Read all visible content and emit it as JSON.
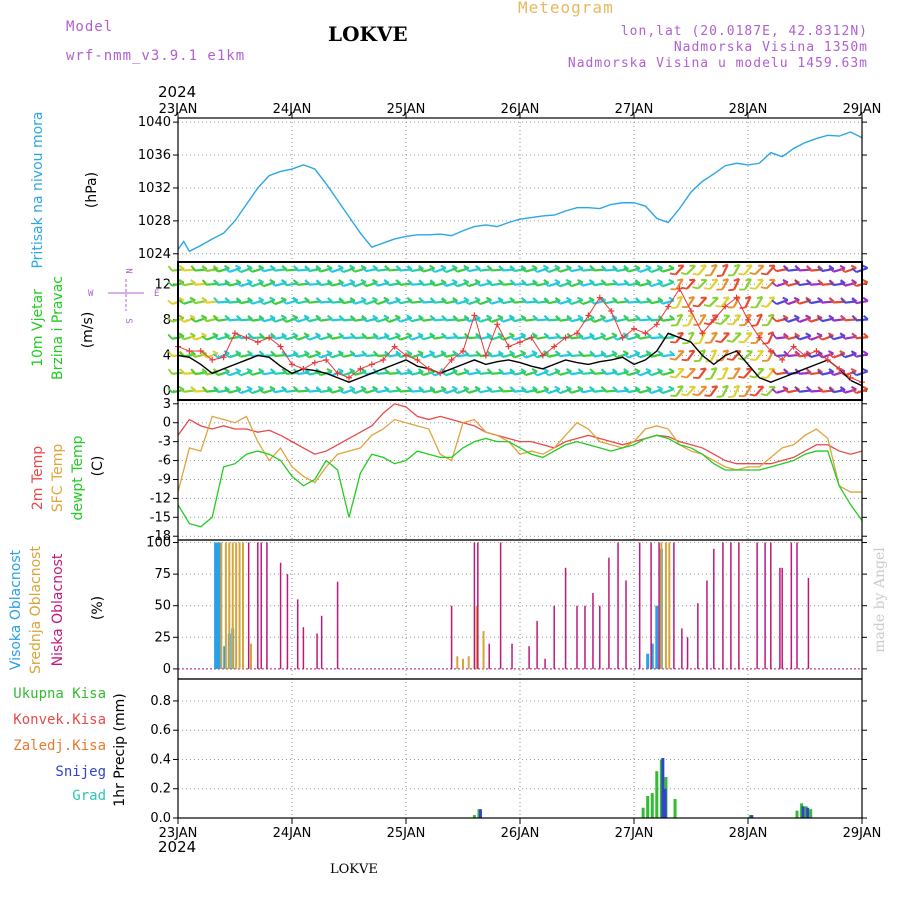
{
  "header": {
    "model_label": "Model",
    "model_name": "wrf-nmm_v3.9.1  e1km",
    "station": "LOKVE",
    "meteogram": "Meteogram",
    "coords": "lon,lat (20.0187E, 42.8312N)",
    "altitude": "Nadmorska Visina 1350m",
    "model_altitude": "Nadmorska Visina u modelu 1459.63m",
    "year_top": "2024",
    "year_bottom": "2024",
    "footer_station": "LOKVE",
    "credit": "made by Angel"
  },
  "colors": {
    "pressure": "#2aa7e6",
    "wind_speed": "#000000",
    "wind_gust": "#e83a3a",
    "temp_2m": "#e84a4a",
    "temp_sfc": "#e0a43c",
    "dewpoint": "#22cc22",
    "cloud_high": "#2aa0e6",
    "cloud_mid": "#d4a53a",
    "cloud_low": "#c0187a",
    "precip_total": "#33bb33",
    "precip_snow": "#3344cc",
    "label_purple": "#b060d0"
  },
  "chart_data": [
    {
      "panel": "pressure",
      "type": "line",
      "ylabel_name": "Pritisak na nivou mora",
      "ylabel_unit": "(hPa)",
      "ylim": [
        1023,
        1040.5
      ],
      "yticks": [
        1024,
        1028,
        1032,
        1036,
        1040
      ],
      "x": [
        0,
        0.05,
        0.1,
        0.2,
        0.3,
        0.4,
        0.5,
        0.6,
        0.7,
        0.8,
        0.9,
        1.0,
        1.1,
        1.2,
        1.3,
        1.4,
        1.5,
        1.6,
        1.7,
        1.8,
        1.9,
        2.0,
        2.1,
        2.2,
        2.3,
        2.4,
        2.5,
        2.6,
        2.7,
        2.8,
        2.9,
        3.0,
        3.1,
        3.2,
        3.3,
        3.4,
        3.5,
        3.6,
        3.7,
        3.8,
        3.9,
        4.0,
        4.1,
        4.2,
        4.3,
        4.4,
        4.5,
        4.6,
        4.7,
        4.8,
        4.9,
        5.0,
        5.1,
        5.2,
        5.3,
        5.4,
        5.5,
        5.6,
        5.7,
        5.8,
        5.9,
        6.0
      ],
      "series": [
        {
          "values": [
            1024.5,
            1025.5,
            1024.3,
            1025.0,
            1025.8,
            1026.5,
            1028.0,
            1030.0,
            1032.0,
            1033.5,
            1034.0,
            1034.3,
            1034.8,
            1034.3,
            1032.5,
            1030.5,
            1028.5,
            1026.5,
            1024.8,
            1025.3,
            1025.8,
            1026.1,
            1026.3,
            1026.3,
            1026.4,
            1026.2,
            1026.8,
            1027.3,
            1027.5,
            1027.3,
            1027.8,
            1028.2,
            1028.4,
            1028.6,
            1028.7,
            1029.2,
            1029.6,
            1029.6,
            1029.5,
            1030.0,
            1030.2,
            1030.2,
            1029.8,
            1028.3,
            1027.8,
            1029.5,
            1031.5,
            1032.8,
            1033.7,
            1034.7,
            1035.0,
            1034.8,
            1035.0,
            1036.3,
            1035.8,
            1036.8,
            1037.5,
            1038.0,
            1038.4,
            1038.3,
            1038.8,
            1038.1
          ]
        }
      ]
    },
    {
      "panel": "wind",
      "type": "line",
      "ylabel_name": "10m Vjetar Brzina i Pravac",
      "ylabel_unit": "(m/s)",
      "compass_n": "N",
      "compass_s": "S",
      "compass_w": "W",
      "compass_e": "E",
      "ylim": [
        -1,
        14.5
      ],
      "yticks": [
        0,
        4,
        8,
        12
      ],
      "x": [
        0,
        0.1,
        0.2,
        0.3,
        0.4,
        0.5,
        0.6,
        0.7,
        0.8,
        0.9,
        1.0,
        1.1,
        1.2,
        1.3,
        1.4,
        1.5,
        1.6,
        1.7,
        1.8,
        1.9,
        2.0,
        2.1,
        2.2,
        2.3,
        2.4,
        2.5,
        2.6,
        2.7,
        2.8,
        2.9,
        3.0,
        3.1,
        3.2,
        3.3,
        3.4,
        3.5,
        3.6,
        3.7,
        3.8,
        3.9,
        4.0,
        4.1,
        4.2,
        4.3,
        4.4,
        4.5,
        4.6,
        4.7,
        4.8,
        4.9,
        5.0,
        5.1,
        5.2,
        5.3,
        5.4,
        5.5,
        5.6,
        5.7,
        5.8,
        5.9,
        6.0
      ],
      "series": [
        {
          "name": "speed",
          "values": [
            4.0,
            3.8,
            3.0,
            2.0,
            2.5,
            3.0,
            3.5,
            4.0,
            3.8,
            2.8,
            2.0,
            2.5,
            2.3,
            2.0,
            1.5,
            1.0,
            1.5,
            2.0,
            2.5,
            3.0,
            3.5,
            2.8,
            2.5,
            2.0,
            2.5,
            3.0,
            3.5,
            3.0,
            3.3,
            3.5,
            3.2,
            2.8,
            2.5,
            3.0,
            3.5,
            3.2,
            3.0,
            3.3,
            3.5,
            3.8,
            3.0,
            3.5,
            4.5,
            6.5,
            6.0,
            5.5,
            4.0,
            3.0,
            4.0,
            4.5,
            3.0,
            1.5,
            1.0,
            1.5,
            2.0,
            2.5,
            3.0,
            3.5,
            2.5,
            1.2,
            0.6
          ]
        },
        {
          "name": "gust",
          "values": [
            5.0,
            4.5,
            4.5,
            3.5,
            3.8,
            6.5,
            6.0,
            5.5,
            6.0,
            5.0,
            3.0,
            2.5,
            3.2,
            3.5,
            2.0,
            1.5,
            2.5,
            3.0,
            3.5,
            5.0,
            4.0,
            3.5,
            2.5,
            2.0,
            3.5,
            4.5,
            8.5,
            4.0,
            7.5,
            5.0,
            5.5,
            6.0,
            4.0,
            5.0,
            6.0,
            6.5,
            8.5,
            10.5,
            9.0,
            6.0,
            7.0,
            6.5,
            7.5,
            9.5,
            11.5,
            9.0,
            6.5,
            8.0,
            9.5,
            10.5,
            8.0,
            6.0,
            4.5,
            3.5,
            5.0,
            4.0,
            4.5,
            3.5,
            2.5,
            1.5,
            1.0
          ]
        }
      ]
    },
    {
      "panel": "temperature",
      "type": "line",
      "ylabel_2m": "2m Temp",
      "ylabel_sfc": "SFC Temp",
      "ylabel_dew": "dewpt Temp",
      "ylabel_unit": "(C)",
      "ylim": [
        -18.6,
        3.6
      ],
      "yticks": [
        -18,
        -15,
        -12,
        -9,
        -6,
        -3,
        0,
        3
      ],
      "x": [
        0,
        0.1,
        0.2,
        0.3,
        0.4,
        0.5,
        0.6,
        0.7,
        0.8,
        0.9,
        1.0,
        1.1,
        1.2,
        1.3,
        1.4,
        1.5,
        1.6,
        1.7,
        1.8,
        1.9,
        2.0,
        2.1,
        2.2,
        2.3,
        2.4,
        2.5,
        2.6,
        2.7,
        2.8,
        2.9,
        3.0,
        3.1,
        3.2,
        3.3,
        3.4,
        3.5,
        3.6,
        3.7,
        3.8,
        3.9,
        4.0,
        4.1,
        4.2,
        4.3,
        4.4,
        4.5,
        4.6,
        4.7,
        4.8,
        4.9,
        5.0,
        5.1,
        5.2,
        5.3,
        5.4,
        5.5,
        5.6,
        5.7,
        5.8,
        5.9,
        6.0
      ],
      "series": [
        {
          "name": "2m",
          "values": [
            -2.0,
            0.5,
            -0.5,
            -1.0,
            -0.5,
            -1.0,
            -1.0,
            -1.5,
            -1.2,
            -2.0,
            -3.0,
            -4.0,
            -5.0,
            -4.5,
            -3.5,
            -2.5,
            -1.5,
            -0.5,
            1.5,
            3.0,
            2.5,
            1.0,
            0.5,
            1.0,
            0.5,
            0.0,
            -0.5,
            -1.5,
            -2.0,
            -2.5,
            -3.0,
            -3.0,
            -3.5,
            -4.0,
            -3.0,
            -2.5,
            -2.0,
            -2.5,
            -3.0,
            -3.5,
            -3.0,
            -2.5,
            -2.0,
            -2.2,
            -3.0,
            -3.5,
            -4.0,
            -5.0,
            -6.0,
            -6.5,
            -6.5,
            -6.5,
            -6.5,
            -6.0,
            -5.5,
            -4.5,
            -3.5,
            -3.5,
            -4.5,
            -5.0,
            -4.5
          ]
        },
        {
          "name": "sfc",
          "values": [
            -11.0,
            -4.0,
            -4.5,
            1.0,
            0.5,
            0.0,
            1.0,
            -3.0,
            -6.0,
            -4.0,
            -7.0,
            -8.5,
            -9.5,
            -7.0,
            -5.0,
            -4.5,
            -4.0,
            -2.0,
            -1.0,
            0.5,
            0.0,
            -0.5,
            -1.0,
            -5.0,
            -6.0,
            0.0,
            0.5,
            -1.5,
            -2.0,
            -3.0,
            -5.0,
            -4.5,
            -5.0,
            -4.0,
            -2.0,
            0.0,
            -1.0,
            -3.0,
            -3.5,
            -4.0,
            -3.0,
            -1.0,
            -0.5,
            -1.0,
            -3.5,
            -4.5,
            -5.0,
            -6.0,
            -7.0,
            -7.5,
            -7.0,
            -7.0,
            -5.5,
            -4.0,
            -3.5,
            -2.0,
            -1.0,
            -2.5,
            -10.0,
            -11.0,
            -11.0
          ]
        },
        {
          "name": "dewpt",
          "values": [
            -13.0,
            -16.0,
            -16.5,
            -15.0,
            -7.0,
            -6.5,
            -5.0,
            -4.5,
            -5.0,
            -6.0,
            -8.5,
            -10.0,
            -9.0,
            -6.0,
            -7.5,
            -15.0,
            -8.0,
            -5.0,
            -5.5,
            -6.5,
            -6.0,
            -4.5,
            -5.0,
            -5.5,
            -5.5,
            -4.0,
            -3.0,
            -2.5,
            -3.0,
            -3.0,
            -4.0,
            -5.0,
            -5.5,
            -4.5,
            -3.5,
            -3.0,
            -3.5,
            -4.0,
            -4.5,
            -4.0,
            -3.5,
            -2.5,
            -2.0,
            -2.5,
            -3.5,
            -4.0,
            -5.0,
            -6.5,
            -7.5,
            -7.5,
            -7.5,
            -7.5,
            -7.0,
            -6.5,
            -6.0,
            -5.0,
            -4.5,
            -4.5,
            -10.0,
            -13.0,
            -15.5
          ]
        }
      ]
    },
    {
      "panel": "clouds",
      "type": "bar",
      "ylabel_high": "Visoka Oblacnost",
      "ylabel_mid": "Srednja Oblacnost",
      "ylabel_low": "Niska Oblacnost",
      "ylabel_unit": "(%)",
      "ylim": [
        -8,
        102
      ],
      "yticks": [
        0,
        25,
        50,
        75,
        100
      ],
      "series": [
        {
          "name": "high",
          "points": [
            [
              0.33,
              100
            ],
            [
              0.35,
              100
            ],
            [
              0.37,
              100
            ],
            [
              0.41,
              18
            ],
            [
              0.45,
              28
            ],
            [
              0.48,
              32
            ],
            [
              4.12,
              12
            ],
            [
              4.16,
              20
            ],
            [
              4.2,
              50
            ],
            [
              4.24,
              95
            ]
          ]
        },
        {
          "name": "mid",
          "points": [
            [
              0.38,
              100
            ],
            [
              0.42,
              100
            ],
            [
              0.45,
              100
            ],
            [
              0.48,
              100
            ],
            [
              0.51,
              100
            ],
            [
              0.54,
              100
            ],
            [
              0.57,
              100
            ],
            [
              0.64,
              20
            ],
            [
              2.45,
              10
            ],
            [
              2.5,
              8
            ],
            [
              2.55,
              10
            ],
            [
              2.62,
              50
            ],
            [
              2.68,
              30
            ],
            [
              4.24,
              100
            ],
            [
              4.28,
              100
            ],
            [
              4.31,
              100
            ]
          ]
        },
        {
          "name": "low",
          "points": [
            [
              0.62,
              100
            ],
            [
              0.7,
              100
            ],
            [
              0.73,
              100
            ],
            [
              0.78,
              100
            ],
            [
              0.9,
              84
            ],
            [
              0.96,
              75
            ],
            [
              1.05,
              55
            ],
            [
              1.1,
              33
            ],
            [
              1.22,
              28
            ],
            [
              1.26,
              42
            ],
            [
              1.4,
              69
            ],
            [
              2.4,
              50
            ],
            [
              2.6,
              100
            ],
            [
              2.63,
              100
            ],
            [
              2.73,
              20
            ],
            [
              2.83,
              100
            ],
            [
              2.93,
              20
            ],
            [
              3.08,
              18
            ],
            [
              3.15,
              38
            ],
            [
              3.22,
              8
            ],
            [
              3.3,
              50
            ],
            [
              3.4,
              80
            ],
            [
              3.5,
              50
            ],
            [
              3.57,
              50
            ],
            [
              3.64,
              60
            ],
            [
              3.7,
              50
            ],
            [
              3.78,
              88
            ],
            [
              3.86,
              100
            ],
            [
              3.93,
              70
            ],
            [
              4.05,
              100
            ],
            [
              4.15,
              100
            ],
            [
              4.22,
              100
            ],
            [
              4.35,
              100
            ],
            [
              4.42,
              32
            ],
            [
              4.47,
              25
            ],
            [
              4.56,
              52
            ],
            [
              4.64,
              70
            ],
            [
              4.7,
              95
            ],
            [
              4.78,
              100
            ],
            [
              4.85,
              100
            ],
            [
              4.92,
              100
            ],
            [
              5.08,
              100
            ],
            [
              5.15,
              100
            ],
            [
              5.2,
              100
            ],
            [
              5.28,
              80
            ],
            [
              5.3,
              80
            ],
            [
              5.38,
              100
            ],
            [
              5.43,
              100
            ],
            [
              5.53,
              72
            ]
          ]
        }
      ]
    },
    {
      "panel": "precip",
      "type": "bar",
      "label_total": "Ukupna Kisa",
      "label_conv": "Konvek.Kisa",
      "label_frz": "Zaledj.Kisa",
      "label_snow": "Snijeg",
      "label_grad": "Grad",
      "ylabel_unit": "1hr Precip (mm)",
      "ylim": [
        0,
        0.95
      ],
      "yticks": [
        0.0,
        0.2,
        0.4,
        0.6,
        0.8
      ],
      "series": [
        {
          "name": "total",
          "points": [
            [
              2.6,
              0.02
            ],
            [
              2.64,
              0.06
            ],
            [
              4.08,
              0.07
            ],
            [
              4.12,
              0.15
            ],
            [
              4.16,
              0.17
            ],
            [
              4.2,
              0.32
            ],
            [
              4.24,
              0.4
            ],
            [
              4.28,
              0.28
            ],
            [
              4.36,
              0.13
            ],
            [
              5.02,
              0.02
            ],
            [
              5.43,
              0.05
            ],
            [
              5.47,
              0.1
            ],
            [
              5.51,
              0.08
            ],
            [
              5.55,
              0.06
            ]
          ]
        },
        {
          "name": "snow",
          "points": [
            [
              2.64,
              0.06
            ],
            [
              4.24,
              0.41
            ],
            [
              4.26,
              0.2
            ],
            [
              5.02,
              0.02
            ],
            [
              5.47,
              0.08
            ],
            [
              5.51,
              0.07
            ]
          ]
        }
      ]
    }
  ],
  "x_axis": {
    "ticks": [
      "23JAN",
      "24JAN",
      "25JAN",
      "26JAN",
      "27JAN",
      "28JAN",
      "29JAN"
    ]
  }
}
